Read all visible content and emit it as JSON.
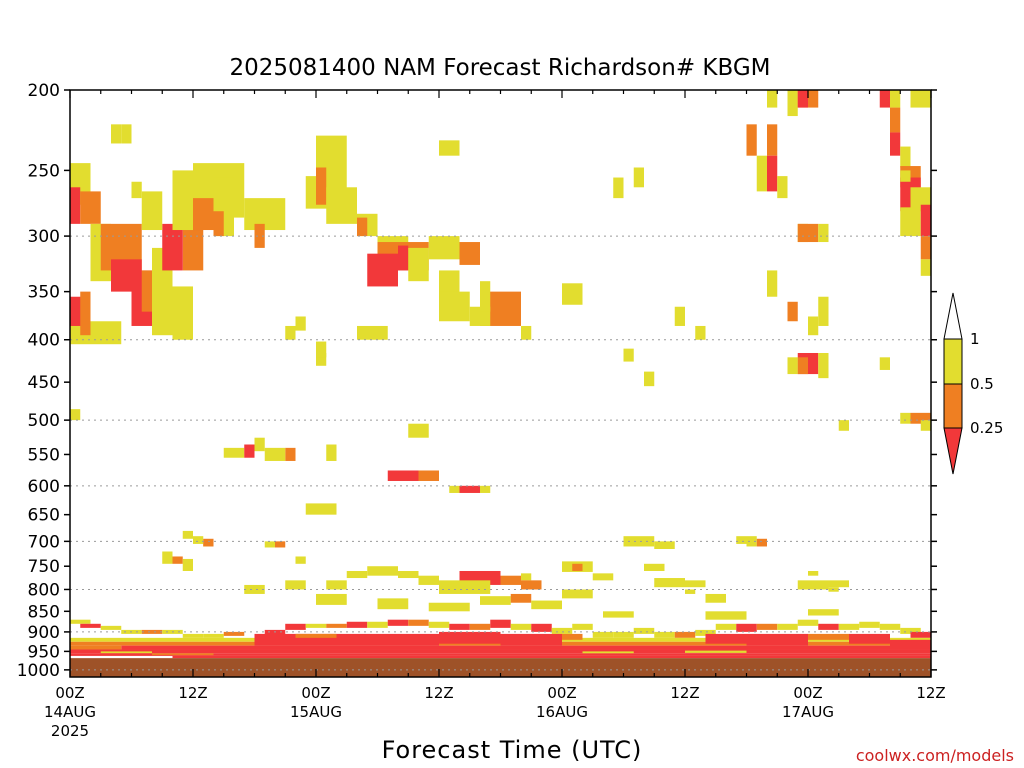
{
  "colors": {
    "lt_0_25": "#f2383a",
    "b_0_25_0_5": "#ef7f22",
    "b_0_5_1": "#e2dd2f",
    "ground": "#9e5228",
    "credit": "#cc2222"
  },
  "credit": "coolwx.com/models",
  "chart_data": {
    "type": "heatmap",
    "title": "2025081400 NAM Forecast Richardson# KBGM",
    "xlabel": "Forecast Time (UTC)",
    "ylabel": "",
    "y_scale": "log-pressure, inverted",
    "ylim": [
      1020,
      200
    ],
    "y_ticks": [
      200,
      250,
      300,
      350,
      400,
      450,
      500,
      550,
      600,
      650,
      700,
      750,
      800,
      850,
      900,
      950,
      1000
    ],
    "grid_levels": [
      300,
      400,
      500,
      600,
      700,
      800,
      900,
      1000
    ],
    "x_unit": "forecast hours from 2025081400",
    "xlim": [
      0,
      84
    ],
    "x_ticks": [
      {
        "hour": 0,
        "lines": [
          "00Z",
          "14AUG",
          "2025"
        ]
      },
      {
        "hour": 12,
        "lines": [
          "12Z"
        ]
      },
      {
        "hour": 24,
        "lines": [
          "00Z",
          "15AUG"
        ]
      },
      {
        "hour": 36,
        "lines": [
          "12Z"
        ]
      },
      {
        "hour": 48,
        "lines": [
          "00Z",
          "16AUG"
        ]
      },
      {
        "hour": 60,
        "lines": [
          "12Z"
        ]
      },
      {
        "hour": 72,
        "lines": [
          "00Z",
          "17AUG"
        ]
      },
      {
        "hour": 84,
        "lines": [
          "12Z"
        ]
      }
    ],
    "legend": {
      "placement": "right",
      "labels": [
        "1",
        "0.5",
        "0.25"
      ],
      "bins": [
        {
          "range": "0.5-1",
          "color": "#e2dd2f"
        },
        {
          "range": "0.25-0.5",
          "color": "#ef7f22"
        },
        {
          "range": "<0.25",
          "color": "#f2383a"
        }
      ]
    },
    "ground_level_hpa": 968,
    "cells": [
      [
        "y",
        0,
        2,
        245,
        275
      ],
      [
        "r",
        0,
        1,
        262,
        290
      ],
      [
        "o",
        1,
        3,
        265,
        290
      ],
      [
        "y",
        2,
        4,
        290,
        340
      ],
      [
        "o",
        3,
        7,
        290,
        330
      ],
      [
        "r",
        4,
        7,
        320,
        350
      ],
      [
        "r",
        6,
        9,
        330,
        385
      ],
      [
        "o",
        7,
        9,
        330,
        370
      ],
      [
        "y",
        8,
        10,
        310,
        395
      ],
      [
        "y",
        0,
        5,
        380,
        405
      ],
      [
        "r",
        0,
        2,
        355,
        385
      ],
      [
        "o",
        1,
        2,
        350,
        395
      ],
      [
        "y",
        10,
        12,
        345,
        400
      ],
      [
        "o",
        11,
        13,
        290,
        330
      ],
      [
        "r",
        9,
        11,
        290,
        330
      ],
      [
        "y",
        4,
        5,
        220,
        232
      ],
      [
        "y",
        5,
        6,
        220,
        232
      ],
      [
        "y",
        6,
        7,
        258,
        270
      ],
      [
        "y",
        7,
        9,
        265,
        295
      ],
      [
        "y",
        10,
        12,
        250,
        295
      ],
      [
        "y",
        12,
        17,
        245,
        285
      ],
      [
        "o",
        12,
        14,
        270,
        295
      ],
      [
        "y",
        14,
        16,
        255,
        300
      ],
      [
        "o",
        14,
        15,
        280,
        300
      ],
      [
        "y",
        17,
        21,
        270,
        295
      ],
      [
        "o",
        18,
        19,
        290,
        310
      ],
      [
        "y",
        21,
        22,
        385,
        400
      ],
      [
        "y",
        22,
        23,
        375,
        390
      ],
      [
        "y",
        23,
        24,
        254,
        278
      ],
      [
        "y",
        24,
        27,
        227,
        278
      ],
      [
        "o",
        24,
        25,
        248,
        275
      ],
      [
        "y",
        25,
        28,
        262,
        290
      ],
      [
        "y",
        28,
        30,
        282,
        300
      ],
      [
        "o",
        28,
        29,
        285,
        300
      ],
      [
        "y",
        30,
        33,
        300,
        325
      ],
      [
        "o",
        30,
        35,
        305,
        330
      ],
      [
        "r",
        29,
        32,
        315,
        345
      ],
      [
        "r",
        32,
        33,
        308,
        330
      ],
      [
        "y",
        33,
        35,
        310,
        340
      ],
      [
        "y",
        35,
        38,
        300,
        320
      ],
      [
        "o",
        38,
        40,
        305,
        325
      ],
      [
        "y",
        36,
        38,
        330,
        375
      ],
      [
        "y",
        36,
        39,
        350,
        380
      ],
      [
        "r",
        40,
        43,
        355,
        380
      ],
      [
        "o",
        40,
        44,
        350,
        385
      ],
      [
        "y",
        39,
        41,
        365,
        385
      ],
      [
        "y",
        28,
        31,
        385,
        400
      ],
      [
        "y",
        24,
        25,
        415,
        430
      ],
      [
        "y",
        25,
        26,
        535,
        560
      ],
      [
        "o",
        21,
        22,
        540,
        560
      ],
      [
        "y",
        15,
        17,
        540,
        555
      ],
      [
        "r",
        17,
        18,
        535,
        555
      ],
      [
        "y",
        18,
        19,
        525,
        545
      ],
      [
        "y",
        19,
        21,
        540,
        560
      ],
      [
        "y",
        33,
        35,
        505,
        525
      ],
      [
        "r",
        31,
        34,
        575,
        592
      ],
      [
        "o",
        34,
        36,
        575,
        592
      ],
      [
        "y",
        37,
        38,
        600,
        612
      ],
      [
        "r",
        38,
        40,
        600,
        612
      ],
      [
        "y",
        40,
        41,
        600,
        612
      ],
      [
        "y",
        23,
        26,
        630,
        650
      ],
      [
        "y",
        11,
        12,
        680,
        695
      ],
      [
        "y",
        12,
        13,
        690,
        705
      ],
      [
        "y",
        13,
        14,
        700,
        710
      ],
      [
        "o",
        13,
        14,
        695,
        710
      ],
      [
        "y",
        9,
        10,
        720,
        745
      ],
      [
        "o",
        10,
        11,
        730,
        745
      ],
      [
        "y",
        11,
        12,
        735,
        760
      ],
      [
        "y",
        19,
        20,
        700,
        712
      ],
      [
        "o",
        20,
        21,
        700,
        712
      ],
      [
        "y",
        22,
        23,
        730,
        745
      ],
      [
        "y",
        48,
        51,
        740,
        762
      ],
      [
        "o",
        49,
        50,
        745,
        760
      ],
      [
        "y",
        51,
        53,
        765,
        780
      ],
      [
        "r",
        38,
        42,
        760,
        790
      ],
      [
        "o",
        42,
        44,
        770,
        790
      ],
      [
        "y",
        44,
        45,
        765,
        780
      ],
      [
        "o",
        44,
        46,
        780,
        800
      ],
      [
        "y",
        36,
        41,
        780,
        810
      ],
      [
        "y",
        34,
        36,
        770,
        790
      ],
      [
        "y",
        32,
        34,
        760,
        775
      ],
      [
        "y",
        29,
        32,
        750,
        770
      ],
      [
        "y",
        27,
        29,
        760,
        775
      ],
      [
        "y",
        25,
        27,
        780,
        800
      ],
      [
        "y",
        21,
        23,
        780,
        800
      ],
      [
        "y",
        17,
        19,
        790,
        810
      ],
      [
        "y",
        24,
        27,
        810,
        835
      ],
      [
        "y",
        30,
        33,
        820,
        845
      ],
      [
        "y",
        35,
        39,
        830,
        850
      ],
      [
        "y",
        40,
        43,
        815,
        835
      ],
      [
        "o",
        43,
        45,
        810,
        830
      ],
      [
        "y",
        45,
        48,
        825,
        845
      ],
      [
        "y",
        48,
        51,
        800,
        820
      ],
      [
        "y",
        54,
        57,
        690,
        710
      ],
      [
        "y",
        57,
        59,
        700,
        715
      ],
      [
        "y",
        56,
        58,
        745,
        760
      ],
      [
        "y",
        57,
        60,
        775,
        795
      ],
      [
        "y",
        60,
        62,
        780,
        795
      ],
      [
        "y",
        60,
        61,
        800,
        810
      ],
      [
        "y",
        62,
        64,
        810,
        830
      ],
      [
        "y",
        65,
        66,
        690,
        705
      ],
      [
        "y",
        66,
        67,
        690,
        710
      ],
      [
        "o",
        67,
        68,
        695,
        710
      ],
      [
        "y",
        71,
        74,
        780,
        800
      ],
      [
        "y",
        72,
        73,
        760,
        770
      ],
      [
        "y",
        74,
        76,
        780,
        795
      ],
      [
        "y",
        74,
        75,
        795,
        805
      ],
      [
        "y",
        72,
        75,
        845,
        860
      ],
      [
        "y",
        62,
        66,
        850,
        870
      ],
      [
        "y",
        52,
        55,
        850,
        865
      ],
      [
        "y",
        0,
        2,
        870,
        880
      ],
      [
        "r",
        1,
        3,
        880,
        890
      ],
      [
        "y",
        3,
        5,
        885,
        895
      ],
      [
        "y",
        5,
        7,
        895,
        905
      ],
      [
        "o",
        7,
        9,
        895,
        905
      ],
      [
        "y",
        9,
        11,
        895,
        905
      ],
      [
        "y",
        11,
        13,
        905,
        915
      ],
      [
        "y",
        13,
        15,
        905,
        915
      ],
      [
        "o",
        15,
        17,
        900,
        910
      ],
      [
        "r",
        19,
        21,
        895,
        910
      ],
      [
        "r",
        21,
        23,
        880,
        895
      ],
      [
        "y",
        23,
        25,
        880,
        890
      ],
      [
        "o",
        25,
        27,
        880,
        890
      ],
      [
        "r",
        27,
        29,
        875,
        890
      ],
      [
        "y",
        29,
        31,
        875,
        890
      ],
      [
        "r",
        31,
        33,
        870,
        885
      ],
      [
        "o",
        33,
        35,
        870,
        885
      ],
      [
        "y",
        35,
        37,
        875,
        890
      ],
      [
        "r",
        37,
        39,
        880,
        895
      ],
      [
        "o",
        39,
        41,
        880,
        895
      ],
      [
        "r",
        41,
        43,
        870,
        890
      ],
      [
        "y",
        43,
        45,
        880,
        895
      ],
      [
        "r",
        45,
        47,
        880,
        900
      ],
      [
        "y",
        47,
        49,
        890,
        905
      ],
      [
        "y",
        49,
        51,
        880,
        895
      ],
      [
        "y",
        51,
        53,
        900,
        915
      ],
      [
        "y",
        53,
        55,
        900,
        915
      ],
      [
        "y",
        55,
        57,
        890,
        905
      ],
      [
        "y",
        57,
        59,
        900,
        915
      ],
      [
        "o",
        59,
        61,
        900,
        915
      ],
      [
        "y",
        61,
        63,
        895,
        910
      ],
      [
        "y",
        63,
        65,
        880,
        895
      ],
      [
        "r",
        65,
        67,
        880,
        900
      ],
      [
        "o",
        67,
        69,
        880,
        895
      ],
      [
        "y",
        69,
        71,
        880,
        895
      ],
      [
        "y",
        71,
        73,
        870,
        885
      ],
      [
        "r",
        73,
        75,
        880,
        895
      ],
      [
        "y",
        75,
        77,
        880,
        895
      ],
      [
        "y",
        77,
        79,
        875,
        890
      ],
      [
        "y",
        79,
        81,
        880,
        895
      ],
      [
        "y",
        81,
        83,
        890,
        905
      ],
      [
        "r",
        82,
        84,
        900,
        915
      ],
      [
        "y",
        0,
        84,
        915,
        925
      ],
      [
        "o",
        0,
        84,
        925,
        935
      ],
      [
        "r",
        5,
        84,
        935,
        945
      ],
      [
        "o",
        0,
        5,
        935,
        945
      ],
      [
        "r",
        0,
        84,
        945,
        955
      ],
      [
        "y",
        3,
        8,
        950,
        955
      ],
      [
        "r",
        0,
        84,
        955,
        962
      ],
      [
        "o",
        8,
        14,
        955,
        960
      ],
      [
        "r",
        10,
        84,
        962,
        968
      ],
      [
        "y",
        50,
        55,
        950,
        955
      ],
      [
        "y",
        60,
        66,
        948,
        954
      ],
      [
        "r",
        18,
        30,
        905,
        935
      ],
      [
        "o",
        22,
        26,
        905,
        915
      ],
      [
        "r",
        30,
        36,
        905,
        935
      ],
      [
        "r",
        36,
        42,
        900,
        930
      ],
      [
        "r",
        42,
        48,
        905,
        935
      ],
      [
        "o",
        48,
        50,
        905,
        920
      ],
      [
        "r",
        62,
        66,
        905,
        930
      ],
      [
        "r",
        66,
        72,
        905,
        935
      ],
      [
        "o",
        72,
        76,
        905,
        920
      ],
      [
        "r",
        76,
        80,
        905,
        930
      ],
      [
        "r",
        80,
        84,
        920,
        940
      ],
      [
        "y",
        0,
        1,
        485,
        500
      ],
      [
        "y",
        24,
        25,
        402,
        420
      ],
      [
        "y",
        54,
        55,
        410,
        425
      ],
      [
        "y",
        56,
        57,
        437,
        455
      ],
      [
        "y",
        59,
        60,
        365,
        385
      ],
      [
        "y",
        61,
        62,
        385,
        400
      ],
      [
        "y",
        55,
        56,
        248,
        262
      ],
      [
        "y",
        53,
        54,
        255,
        270
      ],
      [
        "y",
        36,
        38,
        230,
        240
      ],
      [
        "y",
        40,
        41,
        340,
        370
      ],
      [
        "y",
        48,
        50,
        342,
        363
      ],
      [
        "y",
        44,
        45,
        385,
        400
      ],
      [
        "y",
        68,
        69,
        200,
        210
      ],
      [
        "y",
        70,
        71,
        200,
        215
      ],
      [
        "o",
        71,
        73,
        200,
        210
      ],
      [
        "r",
        71,
        72,
        200,
        210
      ],
      [
        "o",
        66,
        67,
        220,
        240
      ],
      [
        "o",
        68,
        69,
        220,
        240
      ],
      [
        "y",
        67,
        68,
        240,
        265
      ],
      [
        "r",
        68,
        69,
        240,
        265
      ],
      [
        "y",
        69,
        70,
        254,
        270
      ],
      [
        "y",
        71,
        72,
        290,
        305
      ],
      [
        "o",
        71,
        73,
        290,
        305
      ],
      [
        "y",
        73,
        74,
        290,
        305
      ],
      [
        "y",
        68,
        69,
        330,
        355
      ],
      [
        "o",
        70,
        71,
        360,
        380
      ],
      [
        "y",
        72,
        73,
        375,
        395
      ],
      [
        "y",
        73,
        74,
        355,
        385
      ],
      [
        "r",
        71,
        73,
        415,
        440
      ],
      [
        "o",
        71,
        72,
        420,
        440
      ],
      [
        "y",
        70,
        71,
        420,
        440
      ],
      [
        "y",
        73,
        74,
        415,
        445
      ],
      [
        "y",
        75,
        76,
        500,
        515
      ],
      [
        "y",
        79,
        80,
        420,
        435
      ],
      [
        "y",
        80,
        81,
        200,
        210
      ],
      [
        "r",
        79,
        80,
        200,
        210
      ],
      [
        "o",
        80,
        81,
        210,
        225
      ],
      [
        "r",
        80,
        81,
        225,
        240
      ],
      [
        "y",
        81,
        82,
        234,
        248
      ],
      [
        "o",
        81,
        83,
        247,
        262
      ],
      [
        "r",
        81,
        83,
        255,
        280
      ],
      [
        "y",
        82,
        84,
        262,
        280
      ],
      [
        "y",
        81,
        83,
        277,
        300
      ],
      [
        "r",
        83,
        84,
        275,
        300
      ],
      [
        "o",
        83,
        84,
        300,
        320
      ],
      [
        "y",
        83,
        84,
        320,
        335
      ],
      [
        "y",
        82,
        84,
        200,
        210
      ],
      [
        "y",
        84,
        85,
        210,
        230
      ],
      [
        "y",
        81,
        82,
        490,
        505
      ],
      [
        "o",
        82,
        84,
        490,
        505
      ],
      [
        "y",
        83,
        84,
        500,
        515
      ],
      [
        "y",
        81,
        82,
        250,
        258
      ]
    ]
  }
}
